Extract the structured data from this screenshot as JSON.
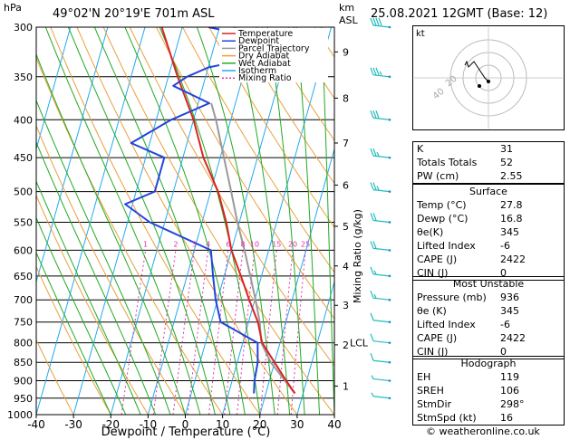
{
  "header": {
    "location": "49°02'N  20°19'E  701m  ASL",
    "datetime": "25.08.2021  12GMT  (Base: 12)",
    "hpa_label": "hPa",
    "km_label": "km",
    "asl_label": "ASL"
  },
  "chart_data": {
    "type": "skew-t",
    "xlabel": "Dewpoint / Temperature (°C)",
    "ylabel_right": "Mixing Ratio (g/kg)",
    "x_ticks": [
      -40,
      -30,
      -20,
      -10,
      0,
      10,
      20,
      30,
      40
    ],
    "pressure_ticks": [
      300,
      350,
      400,
      450,
      500,
      550,
      600,
      650,
      700,
      750,
      800,
      850,
      900,
      950,
      1000
    ],
    "km_ticks": [
      {
        "km": "1",
        "p": 915
      },
      {
        "km": "2",
        "p": 805
      },
      {
        "km": "3",
        "p": 712
      },
      {
        "km": "4",
        "p": 630
      },
      {
        "km": "5",
        "p": 557
      },
      {
        "km": "6",
        "p": 490
      },
      {
        "km": "7",
        "p": 430
      },
      {
        "km": "8",
        "p": 374
      },
      {
        "km": "9",
        "p": 324
      }
    ],
    "lcl": {
      "label": "LCL",
      "p": 800
    },
    "mixing_ratio_labels": [
      "1",
      "2",
      "3",
      "4",
      "6",
      "8",
      "10",
      "15",
      "20",
      "25"
    ],
    "mixing_ratio_values": [
      1,
      2,
      3,
      4,
      6,
      8,
      10,
      15,
      20,
      25
    ],
    "legend": [
      {
        "name": "Temperature",
        "color": "#dd2222"
      },
      {
        "name": "Dewpoint",
        "color": "#2244dd"
      },
      {
        "name": "Parcel Trajectory",
        "color": "#999999"
      },
      {
        "name": "Dry Adiabat",
        "color": "#e8a040"
      },
      {
        "name": "Wet Adiabat",
        "color": "#22aa22"
      },
      {
        "name": "Isotherm",
        "color": "#22aaee"
      },
      {
        "name": "Mixing Ratio",
        "color": "#dd33aa"
      }
    ],
    "temperature": [
      [
        936,
        27.8
      ],
      [
        900,
        24.5
      ],
      [
        850,
        20.0
      ],
      [
        800,
        15.2
      ],
      [
        750,
        12.5
      ],
      [
        700,
        8.5
      ],
      [
        650,
        4.5
      ],
      [
        600,
        0.0
      ],
      [
        550,
        -3.5
      ],
      [
        500,
        -8.0
      ],
      [
        450,
        -14.5
      ],
      [
        400,
        -20.0
      ],
      [
        350,
        -27.5
      ],
      [
        300,
        -35.5
      ]
    ],
    "dewpoint": [
      [
        936,
        16.8
      ],
      [
        900,
        16.0
      ],
      [
        850,
        15.5
      ],
      [
        800,
        14.0
      ],
      [
        750,
        2.5
      ],
      [
        700,
        -0.5
      ],
      [
        650,
        -3.0
      ],
      [
        600,
        -5.5
      ],
      [
        550,
        -24.0
      ],
      [
        520,
        -32.0
      ],
      [
        500,
        -25.0
      ],
      [
        450,
        -25.0
      ],
      [
        430,
        -35.0
      ],
      [
        400,
        -26.0
      ],
      [
        380,
        -17.0
      ],
      [
        360,
        -28.0
      ],
      [
        350,
        -25.0
      ],
      [
        340,
        -20.0
      ],
      [
        330,
        -8.0
      ],
      [
        315,
        -8.0
      ],
      [
        310,
        -17.0
      ],
      [
        305,
        -10.0
      ],
      [
        302,
        -20.0
      ],
      [
        300,
        -23.0
      ]
    ],
    "parcel": [
      [
        936,
        27.8
      ],
      [
        850,
        19.0
      ],
      [
        800,
        15.0
      ],
      [
        750,
        13.0
      ],
      [
        700,
        10.2
      ],
      [
        650,
        7.0
      ],
      [
        600,
        3.5
      ],
      [
        550,
        -0.5
      ],
      [
        500,
        -4.5
      ],
      [
        450,
        -9.0
      ],
      [
        400,
        -14.0
      ],
      [
        380,
        -16.5
      ]
    ]
  },
  "wind_profile": [
    {
      "p": 300,
      "dir": 250,
      "spd": 40
    },
    {
      "p": 350,
      "dir": 245,
      "spd": 35
    },
    {
      "p": 400,
      "dir": 240,
      "spd": 30
    },
    {
      "p": 450,
      "dir": 240,
      "spd": 25
    },
    {
      "p": 500,
      "dir": 235,
      "spd": 25
    },
    {
      "p": 550,
      "dir": 230,
      "spd": 20
    },
    {
      "p": 600,
      "dir": 225,
      "spd": 20
    },
    {
      "p": 650,
      "dir": 220,
      "spd": 15
    },
    {
      "p": 700,
      "dir": 215,
      "spd": 15
    },
    {
      "p": 750,
      "dir": 210,
      "spd": 10
    },
    {
      "p": 800,
      "dir": 200,
      "spd": 10
    },
    {
      "p": 850,
      "dir": 190,
      "spd": 10
    },
    {
      "p": 900,
      "dir": 180,
      "spd": 5
    },
    {
      "p": 950,
      "dir": 170,
      "spd": 5
    }
  ],
  "hodograph": {
    "label": "kt",
    "ring_labels": [
      "20",
      "40"
    ],
    "storm_motion": {
      "dir": 298,
      "spd": 16
    }
  },
  "indices": {
    "basic": [
      {
        "label": "K",
        "value": "31"
      },
      {
        "label": "Totals Totals",
        "value": "52"
      },
      {
        "label": "PW (cm)",
        "value": "2.55"
      }
    ],
    "surface_title": "Surface",
    "surface": [
      {
        "label": "Temp (°C)",
        "value": "27.8"
      },
      {
        "label": "Dewp (°C)",
        "value": "16.8"
      },
      {
        "label": "θe(K)",
        "value": "345"
      },
      {
        "label": "Lifted Index",
        "value": "-6"
      },
      {
        "label": "CAPE (J)",
        "value": "2422"
      },
      {
        "label": "CIN (J)",
        "value": "0"
      }
    ],
    "mu_title": "Most Unstable",
    "most_unstable": [
      {
        "label": "Pressure (mb)",
        "value": "936"
      },
      {
        "label": "θe (K)",
        "value": "345"
      },
      {
        "label": "Lifted Index",
        "value": "-6"
      },
      {
        "label": "CAPE (J)",
        "value": "2422"
      },
      {
        "label": "CIN (J)",
        "value": "0"
      }
    ],
    "hodo_title": "Hodograph",
    "hodograph": [
      {
        "label": "EH",
        "value": "119"
      },
      {
        "label": "SREH",
        "value": "106"
      },
      {
        "label": "StmDir",
        "value": "298°"
      },
      {
        "label": "StmSpd (kt)",
        "value": "16"
      }
    ]
  },
  "credit": "© weatheronline.co.uk"
}
